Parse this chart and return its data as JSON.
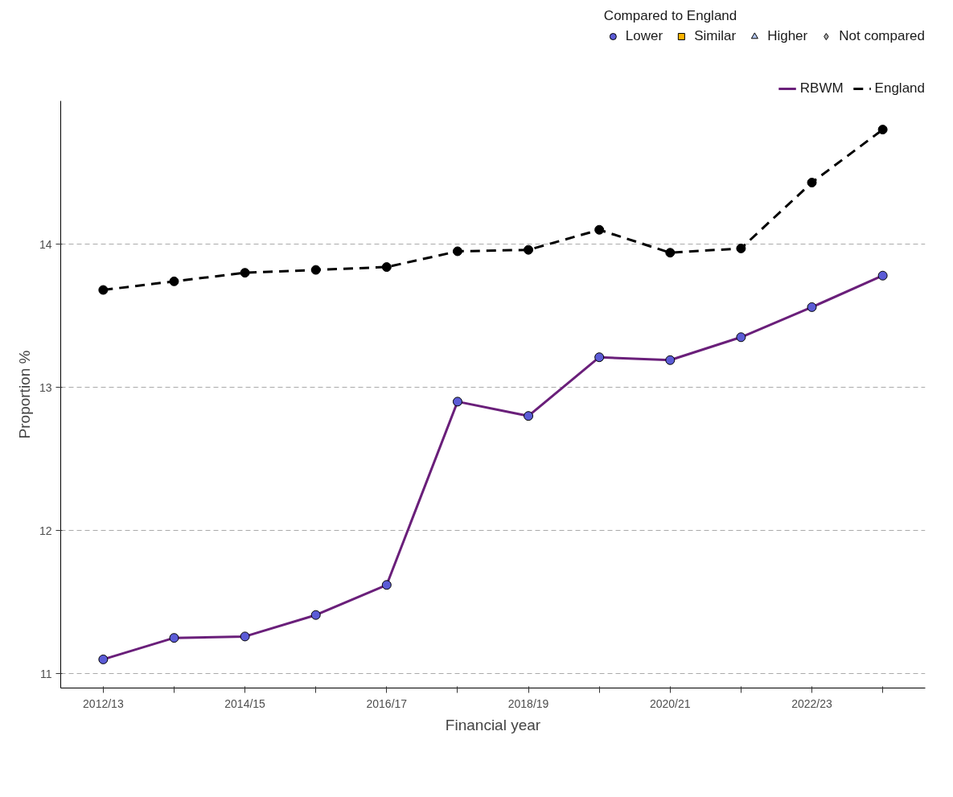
{
  "chart_data": {
    "type": "line",
    "xlabel": "Financial year",
    "ylabel": "Proportion %",
    "legend_title": "Compared to England",
    "categories": [
      "2012/13",
      null,
      "2014/15",
      null,
      "2016/17",
      null,
      "2018/19",
      null,
      "2020/21",
      null,
      "2022/23",
      null
    ],
    "ylim": [
      10.9,
      15.0
    ],
    "yticks": [
      11,
      12,
      13,
      14
    ],
    "grid": "y",
    "legend": "top right",
    "series": [
      {
        "name": "Lower",
        "type": "scatter",
        "marker": "circle",
        "color": "#5b5bd6",
        "values": [
          11.1,
          11.25,
          11.26,
          11.41,
          11.62,
          12.9,
          12.8,
          13.21,
          13.19,
          13.35,
          13.56,
          13.78
        ]
      },
      {
        "name": "Similar",
        "type": "scatter",
        "marker": "square",
        "color": "#ffb300",
        "values": [
          null,
          null,
          null,
          null,
          null,
          null,
          null,
          null,
          null,
          null,
          null,
          null
        ]
      },
      {
        "name": "Higher",
        "type": "scatter",
        "marker": "triangle",
        "color": "#b3c6f0",
        "values": [
          null,
          null,
          null,
          null,
          null,
          null,
          null,
          null,
          null,
          null,
          null,
          null
        ]
      },
      {
        "name": "Not compared",
        "type": "scatter",
        "marker": "diamond",
        "color": "#b0b0b0",
        "values": [
          null,
          null,
          null,
          null,
          null,
          null,
          null,
          null,
          null,
          null,
          null,
          null
        ]
      },
      {
        "name": "RBWM",
        "marker": "none",
        "line_style": "solid",
        "color": "#6a1f7a",
        "values": [
          11.1,
          11.25,
          11.26,
          11.41,
          11.62,
          12.9,
          12.8,
          13.21,
          13.19,
          13.35,
          13.56,
          13.78
        ]
      },
      {
        "name": "England",
        "marker": "circle",
        "line_style": "dashed",
        "color": "#000000",
        "values": [
          13.68,
          13.74,
          13.8,
          13.82,
          13.84,
          13.95,
          13.96,
          14.1,
          13.94,
          13.97,
          14.43,
          14.8
        ]
      }
    ]
  }
}
